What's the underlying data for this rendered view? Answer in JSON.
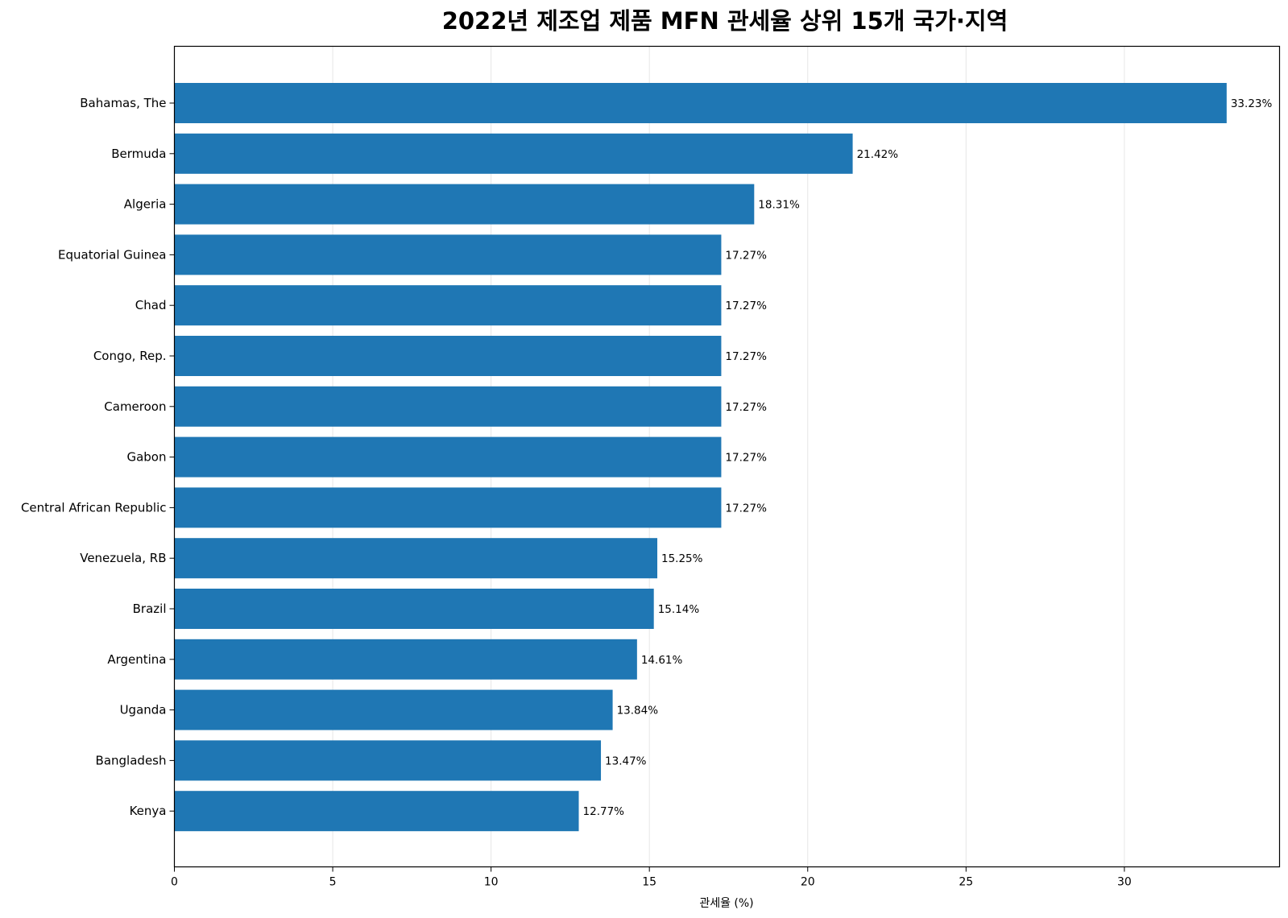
{
  "chart_data": {
    "type": "bar",
    "orientation": "horizontal",
    "title": "2022년 제조업 제품 MFN 관세율 상위 15개 국가·지역",
    "xlabel": "관세율 (%)",
    "ylabel": "",
    "xlim": [
      0,
      34.9
    ],
    "xticks": [
      0,
      5,
      10,
      15,
      20,
      25,
      30
    ],
    "grid": "vertical",
    "bar_color": "#1f77b4",
    "categories": [
      "Bahamas, The",
      "Bermuda",
      "Algeria",
      "Equatorial Guinea",
      "Chad",
      "Congo, Rep.",
      "Cameroon",
      "Gabon",
      "Central African Republic",
      "Venezuela, RB",
      "Brazil",
      "Argentina",
      "Uganda",
      "Bangladesh",
      "Kenya"
    ],
    "values": [
      33.23,
      21.42,
      18.31,
      17.27,
      17.27,
      17.27,
      17.27,
      17.27,
      17.27,
      15.25,
      15.14,
      14.61,
      13.84,
      13.47,
      12.77
    ],
    "value_labels": [
      "33.23%",
      "21.42%",
      "18.31%",
      "17.27%",
      "17.27%",
      "17.27%",
      "17.27%",
      "17.27%",
      "17.27%",
      "15.25%",
      "15.14%",
      "14.61%",
      "13.84%",
      "13.47%",
      "12.77%"
    ]
  }
}
